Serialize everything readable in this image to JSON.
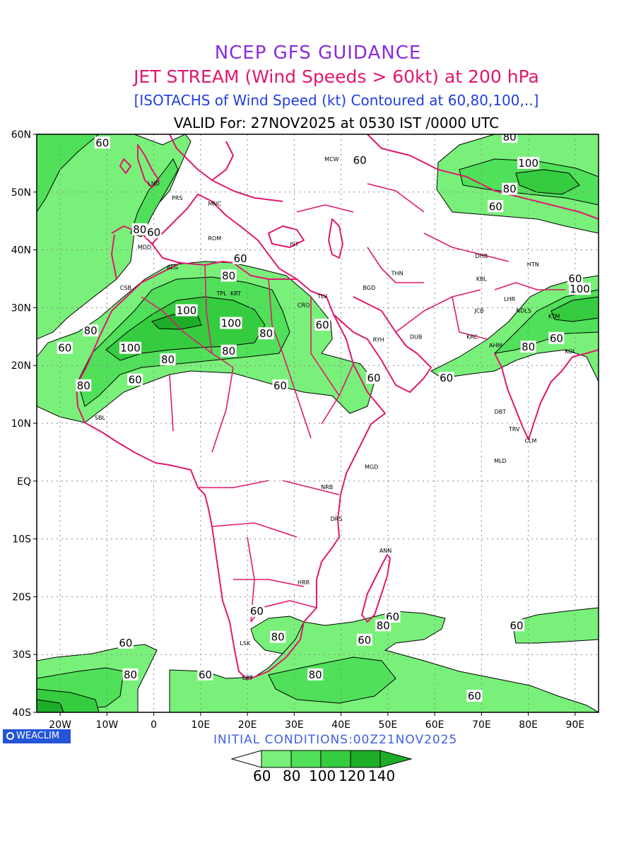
{
  "header": {
    "line1": "NCEP GFS GUIDANCE",
    "line2": "JET STREAM (Wind Speeds > 60kt) at 200 hPa",
    "line3": "[ISOTACHS of Wind Speed (kt) Contoured at 60,80,100,..]",
    "valid": "VALID For: 27NOV2025 at 0530 IST /0000 UTC"
  },
  "map": {
    "lat_labels": [
      "60N",
      "50N",
      "40N",
      "30N",
      "20N",
      "10N",
      "EQ",
      "10S",
      "20S",
      "30S",
      "40S"
    ],
    "lon_labels": [
      "20W",
      "10W",
      "0",
      "10E",
      "20E",
      "30E",
      "40E",
      "50E",
      "60E",
      "70E",
      "80E",
      "90E"
    ],
    "colors": {
      "shade60": "#79f07a",
      "shade80": "#50e05a",
      "shade100": "#36cc3f",
      "shade120": "#1ead29",
      "border": "#e0186e",
      "contour": "#000000"
    },
    "stations": [
      {
        "code": "MCW",
        "lon": 38,
        "lat": 55.7
      },
      {
        "code": "LND",
        "lon": 0,
        "lat": 51.5
      },
      {
        "code": "PRS",
        "lon": 5,
        "lat": 49
      },
      {
        "code": "MNC",
        "lon": 13,
        "lat": 48
      },
      {
        "code": "MDD",
        "lon": -2,
        "lat": 40.5
      },
      {
        "code": "ROM",
        "lon": 13,
        "lat": 42
      },
      {
        "code": "IST",
        "lon": 30,
        "lat": 41
      },
      {
        "code": "ALG",
        "lon": 4,
        "lat": 37
      },
      {
        "code": "CSB",
        "lon": -6,
        "lat": 33.5
      },
      {
        "code": "TPL",
        "lon": 14.5,
        "lat": 32.5
      },
      {
        "code": "KRT",
        "lon": 17.5,
        "lat": 32.5
      },
      {
        "code": "TLV",
        "lon": 36,
        "lat": 32
      },
      {
        "code": "CRO",
        "lon": 32,
        "lat": 30.5
      },
      {
        "code": "BGD",
        "lon": 46,
        "lat": 33.5
      },
      {
        "code": "THN",
        "lon": 52,
        "lat": 36
      },
      {
        "code": "RYH",
        "lon": 48,
        "lat": 24.5
      },
      {
        "code": "DUB",
        "lon": 56,
        "lat": 25
      },
      {
        "code": "DHB",
        "lon": 70,
        "lat": 39
      },
      {
        "code": "HTN",
        "lon": 81,
        "lat": 37.5
      },
      {
        "code": "KBL",
        "lon": 70,
        "lat": 35
      },
      {
        "code": "LHR",
        "lon": 76,
        "lat": 31.5
      },
      {
        "code": "JCB",
        "lon": 69.5,
        "lat": 29.5
      },
      {
        "code": "NDLS",
        "lon": 79,
        "lat": 29.5
      },
      {
        "code": "KTM",
        "lon": 85.5,
        "lat": 28.5
      },
      {
        "code": "KRC",
        "lon": 68,
        "lat": 25
      },
      {
        "code": "AHM",
        "lon": 73,
        "lat": 23.5
      },
      {
        "code": "KOL",
        "lon": 89,
        "lat": 22.5
      },
      {
        "code": "SBL",
        "lon": -11.5,
        "lat": 11
      },
      {
        "code": "DBT",
        "lon": 74,
        "lat": 12
      },
      {
        "code": "TRV",
        "lon": 77,
        "lat": 9
      },
      {
        "code": "CLM",
        "lon": 80.5,
        "lat": 7
      },
      {
        "code": "MLD",
        "lon": 74,
        "lat": 3.5
      },
      {
        "code": "MGD",
        "lon": 46.5,
        "lat": 2.5
      },
      {
        "code": "NRB",
        "lon": 37,
        "lat": -1
      },
      {
        "code": "DRS",
        "lon": 39,
        "lat": -6.5
      },
      {
        "code": "ANN",
        "lon": 49.5,
        "lat": -12
      },
      {
        "code": "HRR",
        "lon": 32,
        "lat": -17.5
      },
      {
        "code": "LSK",
        "lon": 19.5,
        "lat": -28
      },
      {
        "code": "CPT",
        "lon": 20,
        "lat": -34
      }
    ],
    "contour_labels": [
      {
        "text": "60",
        "lon": -11,
        "lat": 58.5
      },
      {
        "text": "60",
        "lon": 44,
        "lat": 55.5
      },
      {
        "text": "80",
        "lon": 76,
        "lat": 59.5
      },
      {
        "text": "100",
        "lon": 80,
        "lat": 55
      },
      {
        "text": "80",
        "lon": 76,
        "lat": 50.5
      },
      {
        "text": "60",
        "lon": 73,
        "lat": 47.5
      },
      {
        "text": "80",
        "lon": -3,
        "lat": 43.5
      },
      {
        "text": "60",
        "lon": 0,
        "lat": 43
      },
      {
        "text": "60",
        "lon": 18.5,
        "lat": 38.5
      },
      {
        "text": "80",
        "lon": 16,
        "lat": 35.5
      },
      {
        "text": "60",
        "lon": 90,
        "lat": 35
      },
      {
        "text": "100",
        "lon": 91,
        "lat": 33.2
      },
      {
        "text": "100",
        "lon": 7,
        "lat": 29.5
      },
      {
        "text": "100",
        "lon": 16.5,
        "lat": 27.3
      },
      {
        "text": "80",
        "lon": 24,
        "lat": 25.5
      },
      {
        "text": "60",
        "lon": 36,
        "lat": 27
      },
      {
        "text": "80",
        "lon": -13.5,
        "lat": 26
      },
      {
        "text": "60",
        "lon": -19,
        "lat": 23
      },
      {
        "text": "100",
        "lon": -5,
        "lat": 23
      },
      {
        "text": "80",
        "lon": 16,
        "lat": 22.5
      },
      {
        "text": "80",
        "lon": 3,
        "lat": 21
      },
      {
        "text": "60",
        "lon": 86,
        "lat": 24.7
      },
      {
        "text": "80",
        "lon": 80,
        "lat": 23.2
      },
      {
        "text": "60",
        "lon": -4,
        "lat": 17.5
      },
      {
        "text": "80",
        "lon": -15,
        "lat": 16.5
      },
      {
        "text": "60",
        "lon": 27,
        "lat": 16.5
      },
      {
        "text": "60",
        "lon": 47,
        "lat": 17.8
      },
      {
        "text": "60",
        "lon": 62.5,
        "lat": 17.8
      },
      {
        "text": "60",
        "lon": 22,
        "lat": -22.5
      },
      {
        "text": "60",
        "lon": 51,
        "lat": -23.5
      },
      {
        "text": "80",
        "lon": 49,
        "lat": -25
      },
      {
        "text": "60",
        "lon": 77.5,
        "lat": -25
      },
      {
        "text": "80",
        "lon": 26.5,
        "lat": -27
      },
      {
        "text": "60",
        "lon": 45,
        "lat": -27.5
      },
      {
        "text": "60",
        "lon": -6,
        "lat": -28
      },
      {
        "text": "80",
        "lon": -5,
        "lat": -33.5
      },
      {
        "text": "60",
        "lon": 11,
        "lat": -33.5
      },
      {
        "text": "80",
        "lon": 34.5,
        "lat": -33.5
      },
      {
        "text": "60",
        "lon": 68.5,
        "lat": -37.2
      }
    ]
  },
  "footer": {
    "logo_text": "WEACLIM",
    "init": "INITIAL CONDITIONS:00Z21NOV2025"
  },
  "legend": {
    "labels": [
      "60",
      "80",
      "100",
      "120",
      "140"
    ]
  }
}
